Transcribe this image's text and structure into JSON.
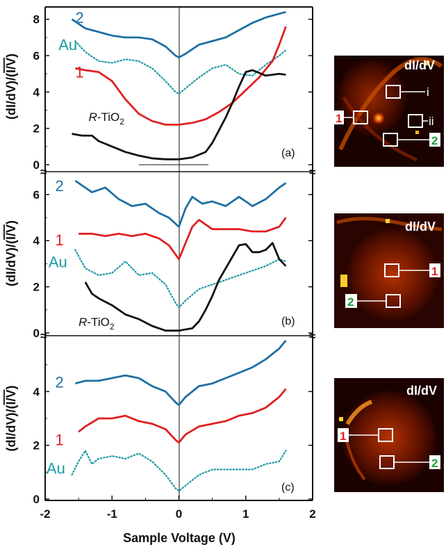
{
  "xlabel": "Sample Voltage (V)",
  "xticks": [
    "-2",
    "-1",
    "0",
    "1",
    "2"
  ],
  "xlim": [
    -2,
    2
  ],
  "ylabel_parts": [
    "(dI/dV)/(",
    "I/V",
    ")"
  ],
  "colors": {
    "s2": "#1f6fa3",
    "s1": "#e02020",
    "au": "#1a9aa3",
    "tio2": "#111111",
    "boxLabelGreen": "#1e9e3a",
    "boxLabelRed": "#e02020"
  },
  "chart_data": [
    {
      "type": "line",
      "panel": "(a)",
      "ylim": [
        0,
        8.6
      ],
      "yticks": [
        "0",
        "2",
        "4",
        "6",
        "8"
      ],
      "tio2_label": {
        "r": "R",
        "rest": "-TiO",
        "sub": "2"
      },
      "series": [
        {
          "name": "2",
          "key": "s2",
          "style": "solid",
          "x": [
            -1.6,
            -1.4,
            -1.2,
            -1.0,
            -0.8,
            -0.6,
            -0.4,
            -0.2,
            -0.05,
            0.0,
            0.1,
            0.3,
            0.5,
            0.7,
            0.9,
            1.1,
            1.3,
            1.5,
            1.6
          ],
          "y": [
            8.0,
            7.5,
            7.3,
            7.1,
            7.0,
            7.0,
            6.9,
            6.5,
            6.0,
            5.9,
            6.1,
            6.6,
            6.8,
            7.0,
            7.4,
            7.8,
            8.1,
            8.3,
            8.4
          ]
        },
        {
          "name": "Au",
          "key": "au",
          "style": "dotted",
          "x": [
            -1.55,
            -1.4,
            -1.2,
            -1.0,
            -0.8,
            -0.6,
            -0.4,
            -0.2,
            -0.05,
            0.0,
            0.1,
            0.3,
            0.5,
            0.7,
            0.9,
            1.1,
            1.3,
            1.5,
            1.6
          ],
          "y": [
            6.8,
            6.2,
            5.7,
            5.6,
            5.8,
            5.7,
            5.3,
            4.6,
            4.0,
            3.9,
            4.2,
            4.8,
            5.3,
            5.5,
            5.0,
            4.9,
            5.5,
            6.0,
            6.3
          ]
        },
        {
          "name": "1",
          "key": "s1",
          "style": "solid",
          "x": [
            -1.55,
            -1.4,
            -1.2,
            -1.0,
            -0.8,
            -0.6,
            -0.4,
            -0.2,
            0.0,
            0.2,
            0.4,
            0.6,
            0.8,
            1.0,
            1.2,
            1.4,
            1.5,
            1.6
          ],
          "y": [
            5.3,
            5.2,
            5.1,
            4.6,
            3.6,
            2.8,
            2.4,
            2.2,
            2.2,
            2.3,
            2.5,
            2.9,
            3.4,
            4.1,
            4.8,
            5.7,
            6.6,
            7.6
          ]
        },
        {
          "name": "R-TiO2",
          "key": "tio2",
          "style": "solid",
          "x": [
            -1.6,
            -1.45,
            -1.3,
            -1.2,
            -1.0,
            -0.8,
            -0.6,
            -0.4,
            -0.2,
            0.0,
            0.2,
            0.4,
            0.5,
            0.6,
            0.7,
            0.8,
            0.9,
            1.0,
            1.1,
            1.3,
            1.5,
            1.6
          ],
          "y": [
            1.7,
            1.6,
            1.6,
            1.3,
            1.0,
            0.7,
            0.5,
            0.35,
            0.3,
            0.3,
            0.4,
            0.7,
            1.2,
            1.9,
            2.6,
            3.4,
            4.3,
            5.1,
            5.2,
            4.9,
            5.0,
            4.95
          ]
        }
      ]
    },
    {
      "type": "line",
      "panel": "(b)",
      "ylim": [
        0,
        6.9
      ],
      "yticks": [
        "0",
        "2",
        "4",
        "6"
      ],
      "tio2_label": {
        "r": "R",
        "rest": "-TiO",
        "sub": "2"
      },
      "series": [
        {
          "name": "2",
          "key": "s2",
          "style": "solid",
          "x": [
            -1.55,
            -1.3,
            -1.1,
            -0.9,
            -0.7,
            -0.5,
            -0.3,
            -0.15,
            0.0,
            0.1,
            0.2,
            0.35,
            0.5,
            0.7,
            0.9,
            1.1,
            1.3,
            1.5,
            1.6
          ],
          "y": [
            6.6,
            6.1,
            6.3,
            5.8,
            5.5,
            5.6,
            5.2,
            5.0,
            4.6,
            5.4,
            5.9,
            5.6,
            5.7,
            5.5,
            5.9,
            5.5,
            5.8,
            6.3,
            6.5
          ]
        },
        {
          "name": "1",
          "key": "s1",
          "style": "solid",
          "x": [
            -1.5,
            -1.3,
            -1.1,
            -0.9,
            -0.7,
            -0.5,
            -0.3,
            -0.15,
            0.0,
            0.1,
            0.2,
            0.3,
            0.5,
            0.7,
            0.9,
            1.1,
            1.3,
            1.5,
            1.6
          ],
          "y": [
            4.3,
            4.3,
            4.2,
            4.3,
            4.2,
            4.3,
            4.1,
            3.8,
            3.2,
            3.9,
            4.6,
            4.9,
            4.5,
            4.5,
            4.5,
            4.4,
            4.4,
            4.6,
            5.0
          ]
        },
        {
          "name": "Au",
          "key": "au",
          "style": "dotted",
          "x": [
            -1.55,
            -1.4,
            -1.2,
            -1.0,
            -0.8,
            -0.6,
            -0.4,
            -0.2,
            -0.05,
            0.0,
            0.1,
            0.3,
            0.5,
            0.7,
            0.9,
            1.1,
            1.3,
            1.5,
            1.6
          ],
          "y": [
            3.6,
            2.8,
            2.5,
            2.6,
            3.1,
            2.5,
            2.6,
            2.1,
            1.3,
            1.1,
            1.4,
            1.9,
            2.1,
            2.3,
            2.5,
            2.7,
            2.9,
            3.2,
            3.1
          ]
        },
        {
          "name": "R-TiO2",
          "key": "tio2",
          "style": "solid",
          "x": [
            -1.4,
            -1.3,
            -1.2,
            -1.0,
            -0.8,
            -0.6,
            -0.4,
            -0.2,
            0.0,
            0.1,
            0.2,
            0.3,
            0.4,
            0.5,
            0.6,
            0.7,
            0.8,
            0.9,
            1.0,
            1.1,
            1.2,
            1.3,
            1.4,
            1.5,
            1.6
          ],
          "y": [
            2.2,
            1.7,
            1.5,
            1.2,
            0.8,
            0.6,
            0.3,
            0.1,
            0.1,
            0.15,
            0.2,
            0.5,
            1.0,
            1.6,
            2.3,
            2.8,
            3.3,
            3.8,
            3.85,
            3.5,
            3.5,
            3.6,
            3.9,
            3.2,
            2.9
          ]
        }
      ]
    },
    {
      "type": "line",
      "panel": "(c)",
      "ylim": [
        0,
        6.0
      ],
      "yticks": [
        "0",
        "2",
        "4"
      ],
      "series": [
        {
          "name": "2",
          "key": "s2",
          "style": "solid",
          "x": [
            -1.55,
            -1.4,
            -1.2,
            -1.0,
            -0.8,
            -0.6,
            -0.4,
            -0.2,
            -0.05,
            0.0,
            0.1,
            0.3,
            0.5,
            0.7,
            0.9,
            1.1,
            1.3,
            1.5,
            1.6
          ],
          "y": [
            4.3,
            4.4,
            4.4,
            4.5,
            4.6,
            4.5,
            4.2,
            4.0,
            3.6,
            3.5,
            3.8,
            4.2,
            4.3,
            4.5,
            4.7,
            4.9,
            5.2,
            5.6,
            5.9
          ]
        },
        {
          "name": "1",
          "key": "s1",
          "style": "solid",
          "x": [
            -1.5,
            -1.4,
            -1.2,
            -1.0,
            -0.8,
            -0.6,
            -0.4,
            -0.2,
            -0.05,
            0.0,
            0.1,
            0.3,
            0.5,
            0.7,
            0.9,
            1.1,
            1.3,
            1.5,
            1.6
          ],
          "y": [
            2.5,
            2.7,
            3.0,
            3.0,
            3.1,
            2.9,
            2.8,
            2.6,
            2.2,
            2.1,
            2.4,
            2.7,
            2.8,
            2.9,
            3.1,
            3.2,
            3.4,
            3.8,
            4.1
          ]
        },
        {
          "name": "Au",
          "key": "au",
          "style": "dotted",
          "x": [
            -1.6,
            -1.5,
            -1.4,
            -1.3,
            -1.2,
            -1.0,
            -0.8,
            -0.6,
            -0.4,
            -0.2,
            -0.05,
            0.0,
            0.1,
            0.3,
            0.5,
            0.7,
            0.9,
            1.1,
            1.3,
            1.5,
            1.6
          ],
          "y": [
            0.9,
            1.4,
            1.8,
            1.3,
            1.5,
            1.6,
            1.5,
            1.7,
            1.4,
            0.9,
            0.4,
            0.3,
            0.5,
            0.9,
            1.1,
            1.1,
            1.1,
            1.1,
            1.3,
            1.4,
            1.8
          ]
        }
      ]
    }
  ],
  "maps": [
    {
      "title": "dI/dV",
      "tag_roman": [
        "i",
        "ii"
      ],
      "box_labels": [
        "1",
        "2"
      ]
    },
    {
      "title": "dI/dV",
      "box_labels": [
        "1",
        "2"
      ]
    },
    {
      "title": "dI/dV",
      "box_labels": [
        "1",
        "2"
      ]
    }
  ]
}
